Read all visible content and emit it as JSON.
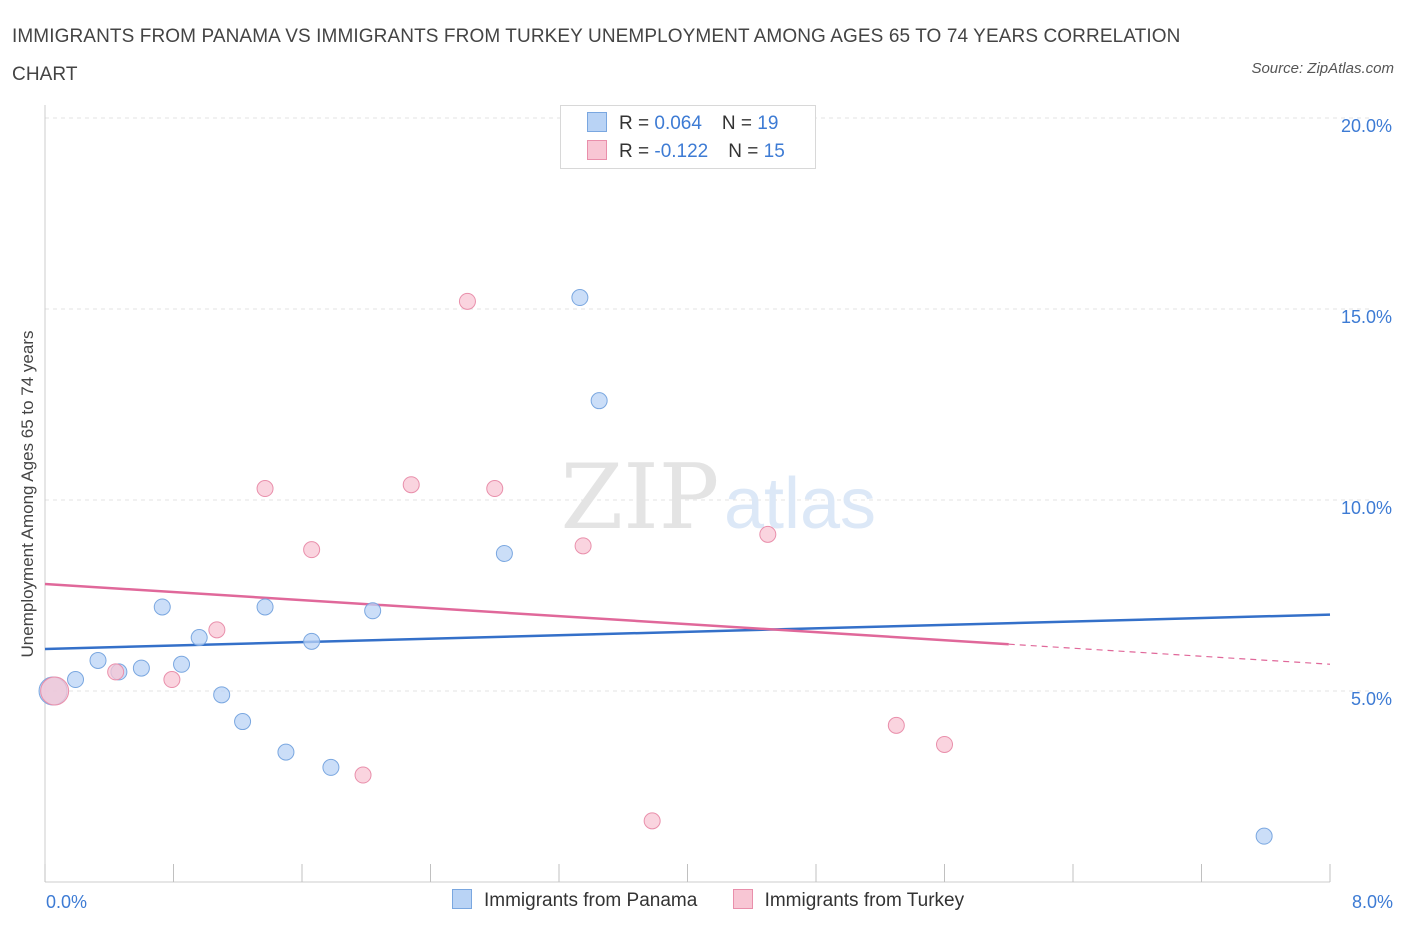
{
  "title": "IMMIGRANTS FROM PANAMA VS IMMIGRANTS FROM TURKEY UNEMPLOYMENT AMONG AGES 65 TO 74 YEARS CORRELATION CHART",
  "source": "Source: ZipAtlas.com",
  "watermark": {
    "zip": "ZIP",
    "atlas": "atlas"
  },
  "stats": [
    {
      "r_label": "R = ",
      "r_value": "0.064",
      "n_label": "N = ",
      "n_value": "19"
    },
    {
      "r_label": "R = ",
      "r_value": "-0.122",
      "n_label": "N = ",
      "n_value": "15"
    }
  ],
  "colors": {
    "panama_fill": "#b9d3f5",
    "panama_stroke": "#7aa7e0",
    "panama_line": "#3470c9",
    "turkey_fill": "#f8c6d4",
    "turkey_stroke": "#e98fab",
    "turkey_line": "#e0689a",
    "accent_text": "#3d7bd4"
  },
  "chart_data": {
    "type": "scatter",
    "title": "IMMIGRANTS FROM PANAMA VS IMMIGRANTS FROM TURKEY UNEMPLOYMENT AMONG AGES 65 TO 74 YEARS CORRELATION CHART",
    "xlabel": "",
    "ylabel": "Unemployment Among Ages 65 to 74 years",
    "xlim": [
      0,
      8
    ],
    "ylim": [
      0,
      20
    ],
    "x_tick_labels": [
      "0.0%",
      "8.0%"
    ],
    "y_ticks": [
      5,
      10,
      15,
      20
    ],
    "y_tick_labels": [
      "5.0%",
      "10.0%",
      "15.0%",
      "20.0%"
    ],
    "grid": true,
    "legend_position": "bottom",
    "series": [
      {
        "name": "Immigrants from Panama",
        "points": [
          {
            "x": 0.05,
            "y": 5.0,
            "size": "large"
          },
          {
            "x": 0.19,
            "y": 5.3
          },
          {
            "x": 0.33,
            "y": 5.8
          },
          {
            "x": 0.46,
            "y": 5.5
          },
          {
            "x": 0.6,
            "y": 5.6
          },
          {
            "x": 0.73,
            "y": 7.2
          },
          {
            "x": 0.85,
            "y": 5.7
          },
          {
            "x": 0.96,
            "y": 6.4
          },
          {
            "x": 1.1,
            "y": 4.9
          },
          {
            "x": 1.23,
            "y": 4.2
          },
          {
            "x": 1.37,
            "y": 7.2
          },
          {
            "x": 1.5,
            "y": 3.4
          },
          {
            "x": 1.66,
            "y": 6.3
          },
          {
            "x": 1.78,
            "y": 3.0
          },
          {
            "x": 2.04,
            "y": 7.1
          },
          {
            "x": 2.86,
            "y": 8.6
          },
          {
            "x": 3.33,
            "y": 15.3
          },
          {
            "x": 3.45,
            "y": 12.6
          },
          {
            "x": 7.59,
            "y": 1.2
          }
        ],
        "trend": {
          "x0": 0.0,
          "y0": 6.1,
          "x1": 8.0,
          "y1": 7.0,
          "dashed_from": null
        }
      },
      {
        "name": "Immigrants from Turkey",
        "points": [
          {
            "x": 0.06,
            "y": 5.0,
            "size": "large"
          },
          {
            "x": 0.44,
            "y": 5.5
          },
          {
            "x": 0.79,
            "y": 5.3
          },
          {
            "x": 1.07,
            "y": 6.6
          },
          {
            "x": 1.37,
            "y": 10.3
          },
          {
            "x": 1.66,
            "y": 8.7
          },
          {
            "x": 1.98,
            "y": 2.8
          },
          {
            "x": 2.28,
            "y": 10.4
          },
          {
            "x": 2.63,
            "y": 15.2
          },
          {
            "x": 2.8,
            "y": 10.3
          },
          {
            "x": 3.35,
            "y": 8.8
          },
          {
            "x": 3.78,
            "y": 1.6
          },
          {
            "x": 4.5,
            "y": 9.1
          },
          {
            "x": 5.3,
            "y": 4.1
          },
          {
            "x": 5.6,
            "y": 3.6
          }
        ],
        "trend": {
          "x0": 0.0,
          "y0": 7.8,
          "x1": 8.0,
          "y1": 5.7,
          "dashed_from": 6.0
        }
      }
    ]
  }
}
